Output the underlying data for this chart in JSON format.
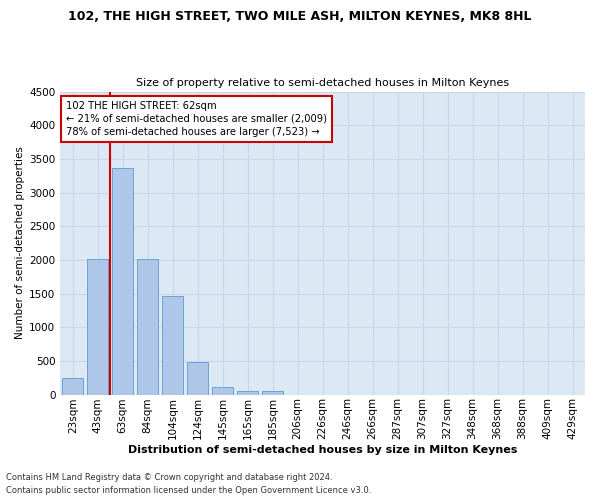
{
  "title": "102, THE HIGH STREET, TWO MILE ASH, MILTON KEYNES, MK8 8HL",
  "subtitle": "Size of property relative to semi-detached houses in Milton Keynes",
  "xlabel": "Distribution of semi-detached houses by size in Milton Keynes",
  "ylabel": "Number of semi-detached properties",
  "categories": [
    "23sqm",
    "43sqm",
    "63sqm",
    "84sqm",
    "104sqm",
    "124sqm",
    "145sqm",
    "165sqm",
    "185sqm",
    "206sqm",
    "226sqm",
    "246sqm",
    "266sqm",
    "287sqm",
    "307sqm",
    "327sqm",
    "348sqm",
    "368sqm",
    "388sqm",
    "409sqm",
    "429sqm"
  ],
  "values": [
    250,
    2020,
    3370,
    2010,
    1460,
    480,
    105,
    60,
    50,
    0,
    0,
    0,
    0,
    0,
    0,
    0,
    0,
    0,
    0,
    0,
    0
  ],
  "bar_color": "#aec6e8",
  "bar_edge_color": "#5b9bd5",
  "property_line_color": "#cc0000",
  "property_line_x": 1.5,
  "property_line_label": "102 THE HIGH STREET: 62sqm",
  "annotation_smaller": "← 21% of semi-detached houses are smaller (2,009)",
  "annotation_larger": "78% of semi-detached houses are larger (7,523) →",
  "annotation_box_facecolor": "#ffffff",
  "annotation_box_edgecolor": "#cc0000",
  "ylim": [
    0,
    4500
  ],
  "yticks": [
    0,
    500,
    1000,
    1500,
    2000,
    2500,
    3000,
    3500,
    4000,
    4500
  ],
  "grid_color": "#c8d8e8",
  "bg_color": "#dce8f4",
  "footer_line1": "Contains HM Land Registry data © Crown copyright and database right 2024.",
  "footer_line2": "Contains public sector information licensed under the Open Government Licence v3.0."
}
